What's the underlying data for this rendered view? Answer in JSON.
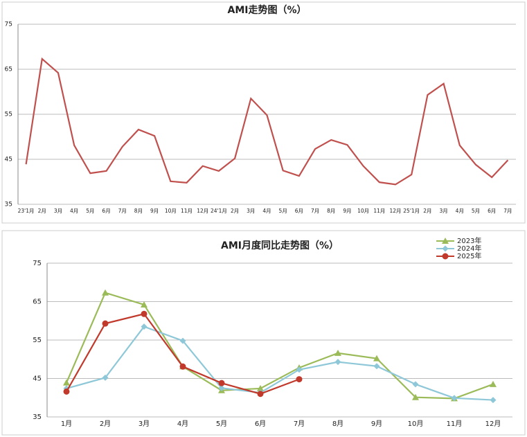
{
  "chart_data": [
    {
      "type": "line",
      "title": "AMI走势图（%）",
      "categories": [
        "23'1月",
        "2月",
        "3月",
        "4月",
        "5月",
        "6月",
        "7月",
        "8月",
        "9月",
        "10月",
        "11月",
        "12月",
        "24'1月",
        "2月",
        "3月",
        "4月",
        "5月",
        "6月",
        "7月",
        "8月",
        "9月",
        "10月",
        "11月",
        "12月",
        "25'1月",
        "2月",
        "3月",
        "4月",
        "5月",
        "6月",
        "7月"
      ],
      "series": [
        {
          "name": null,
          "color": "#c0504d",
          "marker": null,
          "values": [
            43.9,
            67.3,
            64.2,
            48.1,
            41.9,
            42.4,
            47.8,
            51.6,
            50.2,
            40.1,
            39.8,
            43.5,
            42.4,
            45.2,
            58.5,
            54.8,
            42.5,
            41.3,
            47.3,
            49.3,
            48.2,
            43.5,
            39.9,
            39.4,
            41.6,
            59.3,
            61.8,
            48.1,
            43.8,
            41.0,
            44.8
          ]
        }
      ],
      "ylim": [
        35,
        75
      ],
      "yticks": [
        35,
        45,
        55,
        65,
        75
      ],
      "grid": true
    },
    {
      "type": "line",
      "title": "AMI月度同比走势图（%）",
      "categories": [
        "1月",
        "2月",
        "3月",
        "4月",
        "5月",
        "6月",
        "7月",
        "8月",
        "9月",
        "10月",
        "11月",
        "12月"
      ],
      "series": [
        {
          "name": "2023年",
          "color": "#9bbb59",
          "marker": "triangle",
          "values": [
            43.9,
            67.3,
            64.2,
            48.1,
            41.9,
            42.4,
            47.8,
            51.6,
            50.2,
            40.1,
            39.8,
            43.5
          ]
        },
        {
          "name": "2024年",
          "color": "#8ec8d8",
          "marker": "diamond",
          "values": [
            42.4,
            45.2,
            58.5,
            54.8,
            42.5,
            41.3,
            47.3,
            49.3,
            48.2,
            43.5,
            39.9,
            39.4
          ]
        },
        {
          "name": "2025年",
          "color": "#c0392b",
          "marker": "circle",
          "values": [
            41.6,
            59.3,
            61.8,
            48.1,
            43.8,
            41.0,
            44.8,
            null,
            null,
            null,
            null,
            null
          ]
        }
      ],
      "ylim": [
        35,
        75
      ],
      "yticks": [
        35,
        45,
        55,
        65,
        75
      ],
      "grid": true,
      "legend": "top-right"
    }
  ]
}
